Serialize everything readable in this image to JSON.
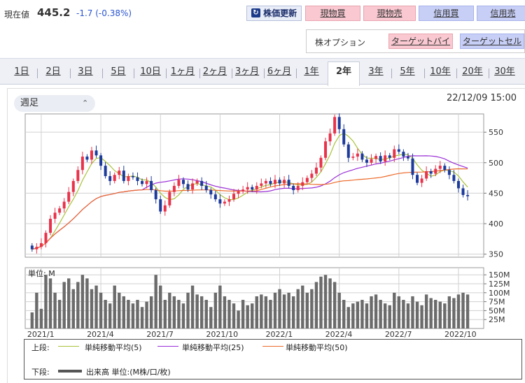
{
  "header": {
    "price_label": "現在値",
    "price": "445.2",
    "change": "-1.7 (-0.38%)",
    "refresh_label": "株価更新",
    "buttons": [
      "現物買",
      "現物売",
      "信用買",
      "信用売"
    ],
    "option_label": "株オプション",
    "target_buy": "ターゲットバイ",
    "target_sell": "ターゲットセル"
  },
  "tabs": [
    "1日",
    "2日",
    "3日",
    "5日",
    "10日",
    "1ヶ月",
    "2ヶ月",
    "3ヶ月",
    "6ヶ月",
    "1年",
    "2年",
    "3年",
    "5年",
    "10年",
    "20年",
    "30年"
  ],
  "active_tab": "2年",
  "period_select": "週足",
  "timestamp": "22/12/09 15:00",
  "legend": {
    "upper_label": "上段:",
    "lower_label": "下段:",
    "ma5": "単純移動平均(5)",
    "ma25": "単純移動平均(25)",
    "ma50": "単純移動平均(50)",
    "volume": "出来高 単位:(M株/口/枚)"
  },
  "colors": {
    "up": "#e8334b",
    "down": "#1d3b9c",
    "ma5": "#a8c23a",
    "ma25": "#9b30d6",
    "ma50": "#ec6a2a"
  },
  "chart_data": {
    "type": "candlestick",
    "price_axis": {
      "ticks": [
        350,
        400,
        450,
        500,
        550
      ],
      "ylim": [
        345,
        580
      ]
    },
    "volume_axis": {
      "unit_label": "単位: M",
      "ticks": [
        "25M",
        "50M",
        "75M",
        "100M",
        "125M",
        "150M"
      ],
      "values": [
        25,
        50,
        75,
        100,
        125,
        150
      ],
      "ylim": [
        0,
        170
      ]
    },
    "x_labels": [
      "2021/1",
      "2021/4",
      "2021/7",
      "2021/10",
      "2022/1",
      "2022/4",
      "2022/7",
      "2022/10"
    ],
    "x_label_weeks": [
      2,
      15,
      28,
      41,
      54,
      67,
      80,
      93
    ],
    "closes": [
      358,
      362,
      368,
      385,
      408,
      418,
      425,
      436,
      452,
      470,
      488,
      510,
      505,
      520,
      512,
      495,
      478,
      470,
      480,
      487,
      470,
      478,
      476,
      470,
      465,
      470,
      455,
      440,
      420,
      430,
      452,
      462,
      472,
      465,
      456,
      466,
      470,
      462,
      455,
      448,
      440,
      433,
      436,
      440,
      449,
      453,
      456,
      460,
      456,
      462,
      466,
      470,
      465,
      472,
      466,
      472,
      462,
      455,
      462,
      468,
      475,
      482,
      492,
      508,
      535,
      548,
      575,
      555,
      530,
      508,
      510,
      515,
      505,
      500,
      506,
      511,
      502,
      512,
      508,
      522,
      518,
      510,
      507,
      480,
      467,
      474,
      486,
      482,
      490,
      495,
      488,
      480,
      470,
      458,
      447,
      445
    ],
    "volumes": [
      45,
      100,
      55,
      150,
      140,
      100,
      80,
      130,
      140,
      110,
      130,
      150,
      140,
      110,
      120,
      100,
      80,
      70,
      120,
      100,
      90,
      80,
      70,
      80,
      60,
      75,
      90,
      150,
      120,
      80,
      100,
      90,
      80,
      70,
      100,
      120,
      95,
      90,
      80,
      60,
      100,
      120,
      90,
      80,
      70,
      50,
      80,
      65,
      70,
      90,
      95,
      90,
      80,
      100,
      110,
      95,
      100,
      90,
      110,
      120,
      100,
      110,
      130,
      145,
      150,
      140,
      130,
      100,
      80,
      60,
      70,
      75,
      80,
      70,
      90,
      95,
      80,
      70,
      65,
      100,
      90,
      80,
      70,
      90,
      75,
      65,
      95,
      85,
      80,
      75,
      70,
      90,
      85,
      95,
      100,
      95
    ]
  }
}
